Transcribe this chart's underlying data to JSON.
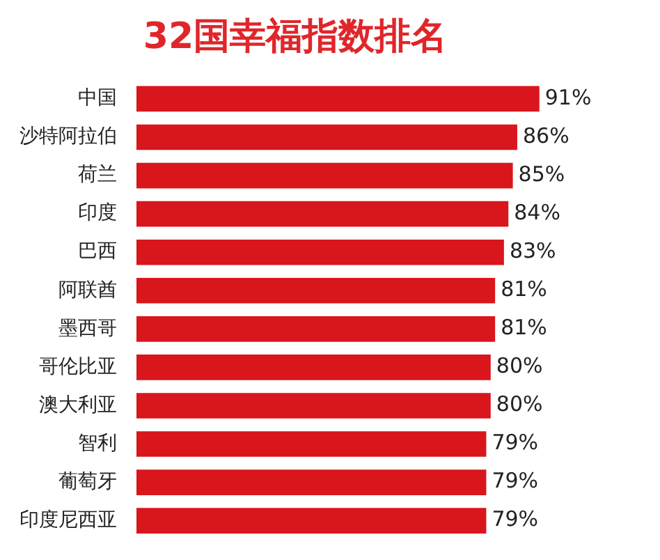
{
  "chart_data": {
    "type": "bar",
    "orientation": "horizontal",
    "title": "32国幸福指数排名",
    "categories": [
      "中国",
      "沙特阿拉伯",
      "荷兰",
      "印度",
      "巴西",
      "阿联酋",
      "墨西哥",
      "哥伦比亚",
      "澳大利亚",
      "智利",
      "葡萄牙",
      "印度尼西亚"
    ],
    "values": [
      91,
      86,
      85,
      84,
      83,
      81,
      81,
      80,
      80,
      79,
      79,
      79
    ],
    "value_labels": [
      "91%",
      "86%",
      "85%",
      "84%",
      "83%",
      "81%",
      "81%",
      "80%",
      "80%",
      "79%",
      "79%",
      "79%"
    ],
    "color": "#d9161c",
    "legend": false
  }
}
